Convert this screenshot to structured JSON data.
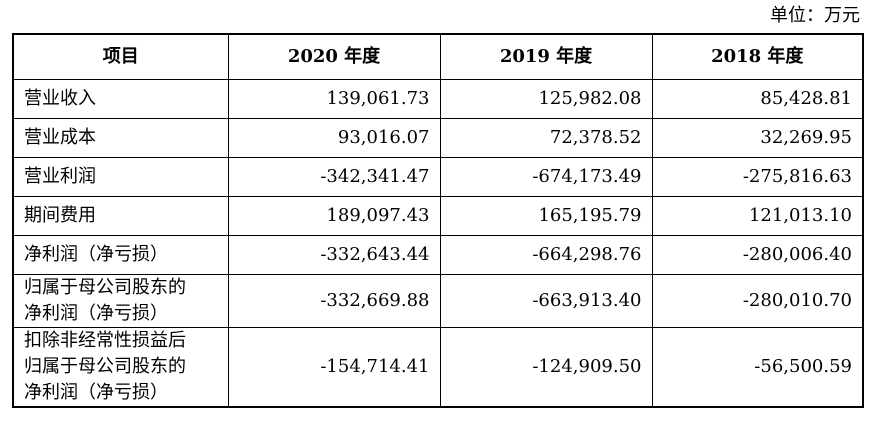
{
  "unit_label": "单位：万元",
  "table": {
    "headers": [
      "项目",
      "2020 年度",
      "2019 年度",
      "2018 年度"
    ],
    "rows": [
      {
        "label": "营业收入",
        "values": [
          "139,061.73",
          "125,982.08",
          "85,428.81"
        ]
      },
      {
        "label": "营业成本",
        "values": [
          "93,016.07",
          "72,378.52",
          "32,269.95"
        ]
      },
      {
        "label": "营业利润",
        "values": [
          "-342,341.47",
          "-674,173.49",
          "-275,816.63"
        ]
      },
      {
        "label": "期间费用",
        "values": [
          "189,097.43",
          "165,195.79",
          "121,013.10"
        ]
      },
      {
        "label": "净利润（净亏损）",
        "values": [
          "-332,643.44",
          "-664,298.76",
          "-280,006.40"
        ]
      },
      {
        "label_lines": [
          "归属于母公司股东的",
          "净利润（净亏损）"
        ],
        "values": [
          "-332,669.88",
          "-663,913.40",
          "-280,010.70"
        ]
      },
      {
        "label_lines": [
          "扣除非经常性损益后",
          "归属于母公司股东的",
          "净利润（净亏损）"
        ],
        "values": [
          "-154,714.41",
          "-124,909.50",
          "-56,500.59"
        ]
      }
    ]
  }
}
